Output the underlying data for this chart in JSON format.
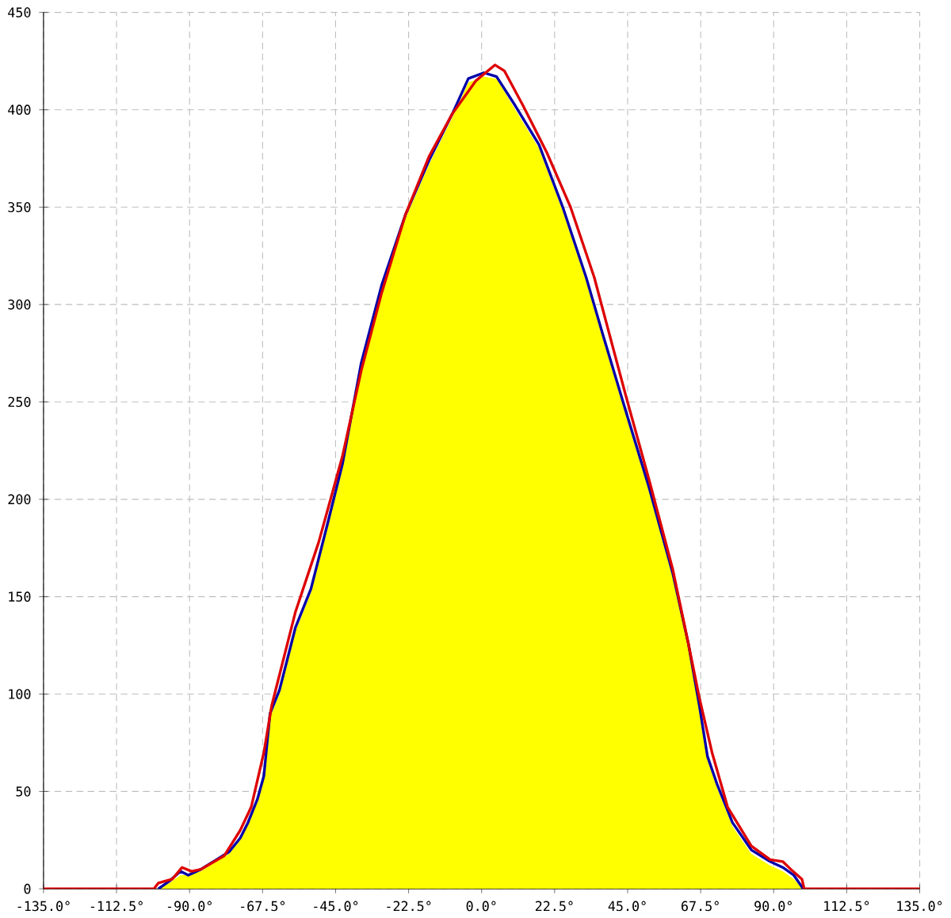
{
  "chart_data": {
    "type": "line",
    "xlim": [
      -135,
      135
    ],
    "ylim": [
      0,
      450
    ],
    "xticks": [
      {
        "value": -135,
        "label": "-135.0°"
      },
      {
        "value": -112.5,
        "label": "-112.5°"
      },
      {
        "value": -90,
        "label": "-90.0°"
      },
      {
        "value": -67.5,
        "label": "-67.5°"
      },
      {
        "value": -45,
        "label": "-45.0°"
      },
      {
        "value": -22.5,
        "label": "-22.5°"
      },
      {
        "value": 0,
        "label": "0.0°"
      },
      {
        "value": 22.5,
        "label": "22.5°"
      },
      {
        "value": 45,
        "label": "45.0°"
      },
      {
        "value": 67.5,
        "label": "67.5°"
      },
      {
        "value": 90,
        "label": "90.0°"
      },
      {
        "value": 112.5,
        "label": "112.5°"
      },
      {
        "value": 135,
        "label": "135.0°"
      }
    ],
    "yticks": [
      0,
      50,
      100,
      150,
      200,
      250,
      300,
      350,
      400,
      450
    ],
    "grid": true,
    "marker": "none",
    "line_style": "solid",
    "series": [
      {
        "type": "area",
        "color": "#ffff00",
        "x": [
          -99.6,
          -96.2,
          -92.8,
          -90.4,
          -86.5,
          -81.7,
          -77.8,
          -74.4,
          -72,
          -69.1,
          -67.1,
          -65.2,
          -62.3,
          -57.4,
          -52.6,
          -47.7,
          -42.9,
          -37.1,
          -30.8,
          -23.5,
          -16.2,
          -9,
          -4.1,
          0.7,
          4.6,
          10.4,
          17.7,
          25,
          32.2,
          37.1,
          44.3,
          51.6,
          58.9,
          63.7,
          67.1,
          69.6,
          72.5,
          77.3,
          83.1,
          88.9,
          92.8,
          96.2,
          99.1
        ],
        "values": [
          0,
          3,
          7,
          7,
          9,
          14,
          18,
          25,
          33,
          45,
          57,
          88,
          100,
          132,
          152,
          184,
          216,
          268,
          308,
          344,
          372,
          396,
          414,
          417,
          416,
          400,
          380,
          348,
          312,
          284,
          244,
          204,
          160,
          124,
          92,
          66,
          52,
          32,
          18,
          12,
          9,
          5,
          0
        ]
      },
      {
        "color": "#0000aa",
        "x": [
          -99.6,
          -96.2,
          -92.8,
          -90.4,
          -86.5,
          -81.7,
          -77.8,
          -74.4,
          -72,
          -69.1,
          -67.1,
          -65.2,
          -62.3,
          -57.4,
          -52.6,
          -47.7,
          -42.9,
          -37.1,
          -30.8,
          -23.5,
          -16.2,
          -9,
          -4.1,
          0.7,
          4.6,
          10.4,
          17.7,
          25,
          32.2,
          37.1,
          44.3,
          51.6,
          58.9,
          63.7,
          67.1,
          69.6,
          72.5,
          77.3,
          83.1,
          88.9,
          92.8,
          96.2,
          99.1
        ],
        "values": [
          0,
          4,
          9,
          7,
          10,
          15,
          19,
          26,
          34,
          46,
          58,
          90,
          102,
          134,
          154,
          186,
          218,
          270,
          310,
          346,
          374,
          398,
          416,
          419,
          417,
          402,
          382,
          350,
          314,
          286,
          246,
          206,
          162,
          126,
          94,
          68,
          54,
          34,
          20,
          14,
          11,
          7,
          0
        ]
      },
      {
        "color": "#dd0000",
        "x": [
          -135,
          -101,
          -99.6,
          -95.3,
          -92.3,
          -89.4,
          -86.5,
          -79.3,
          -74.4,
          -71,
          -67.1,
          -64.7,
          -57.4,
          -50.2,
          -42.9,
          -37.1,
          -30.8,
          -23.5,
          -16.2,
          -9,
          -1.7,
          4.1,
          7,
          12.8,
          20.1,
          27.4,
          34.7,
          44.3,
          51.6,
          58.9,
          63.7,
          67.1,
          71,
          75.8,
          83.1,
          88.9,
          92.8,
          95.3,
          98.7,
          99.4,
          135
        ],
        "values": [
          0,
          0,
          3,
          5,
          11,
          9,
          10,
          17,
          30,
          42,
          70,
          94,
          142,
          178,
          222,
          266,
          306,
          346,
          376,
          398,
          415,
          423,
          420,
          402,
          378,
          350,
          314,
          254,
          210,
          164,
          126,
          98,
          70,
          42,
          22,
          15,
          14,
          10,
          5,
          0,
          0
        ]
      }
    ]
  }
}
